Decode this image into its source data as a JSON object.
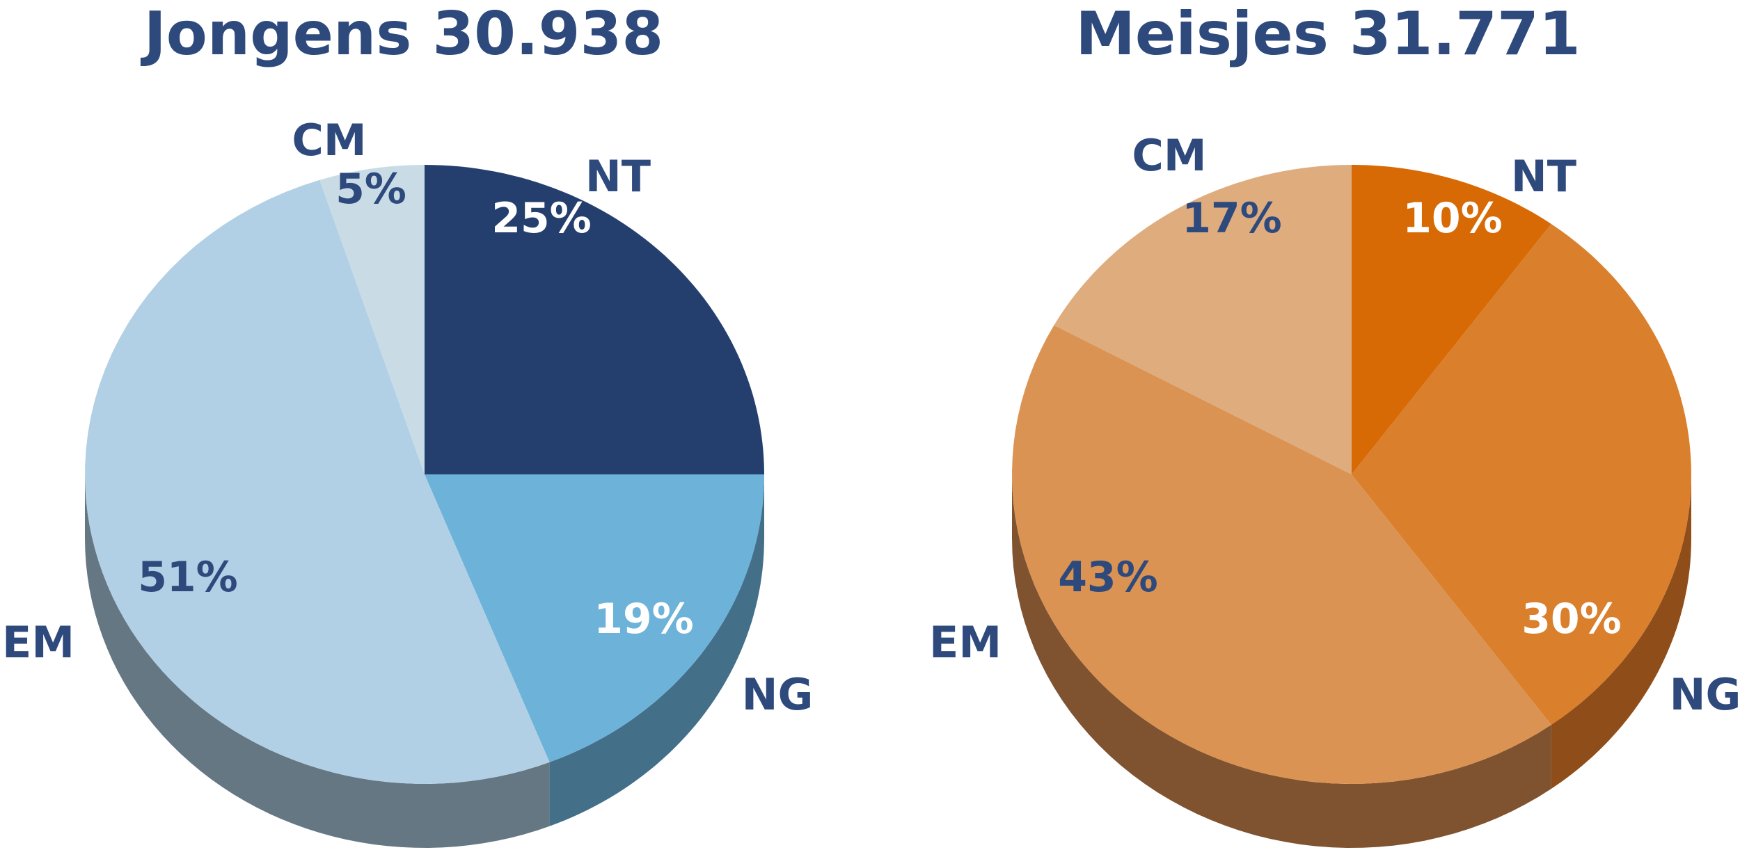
{
  "chart_data": [
    {
      "type": "pie",
      "title": "Jongens 30.938",
      "slices": [
        {
          "label": "NT",
          "value": 25,
          "value_label": "25%",
          "color": "#243F6E",
          "side": "#203a63",
          "text_color": "#ffffff"
        },
        {
          "label": "NG",
          "value": 19,
          "value_label": "19%",
          "color": "#6DB2D8",
          "side": "#436f89",
          "text_color": "#ffffff"
        },
        {
          "label": "EM",
          "value": 51,
          "value_label": "51%",
          "color": "#B1D0E5",
          "side": "#657783",
          "text_color": "#2E4A7D"
        },
        {
          "label": "CM",
          "value": 5,
          "value_label": "5%",
          "color": "#C9DCE6",
          "side": "#6f7f88",
          "text_color": "#2E4A7D"
        }
      ]
    },
    {
      "type": "pie",
      "title": "Meisjes 31.771",
      "slices": [
        {
          "label": "NT",
          "value": 10,
          "value_label": "10%",
          "color": "#D86A05",
          "side": "#8a4a14",
          "text_color": "#ffffff"
        },
        {
          "label": "NG",
          "value": 30,
          "value_label": "30%",
          "color": "#DA7F2C",
          "side": "#8f4d1a",
          "text_color": "#ffffff"
        },
        {
          "label": "EM",
          "value": 43,
          "value_label": "43%",
          "color": "#DA9352",
          "side": "#7f5230",
          "text_color": "#2E4A7D"
        },
        {
          "label": "CM",
          "value": 17,
          "value_label": "17%",
          "color": "#DFAC7E",
          "side": "#8a6240",
          "text_color": "#2E4A7D"
        }
      ]
    }
  ],
  "colors": {
    "title": "#2E4A7D",
    "category_label": "#2E4A7D"
  }
}
